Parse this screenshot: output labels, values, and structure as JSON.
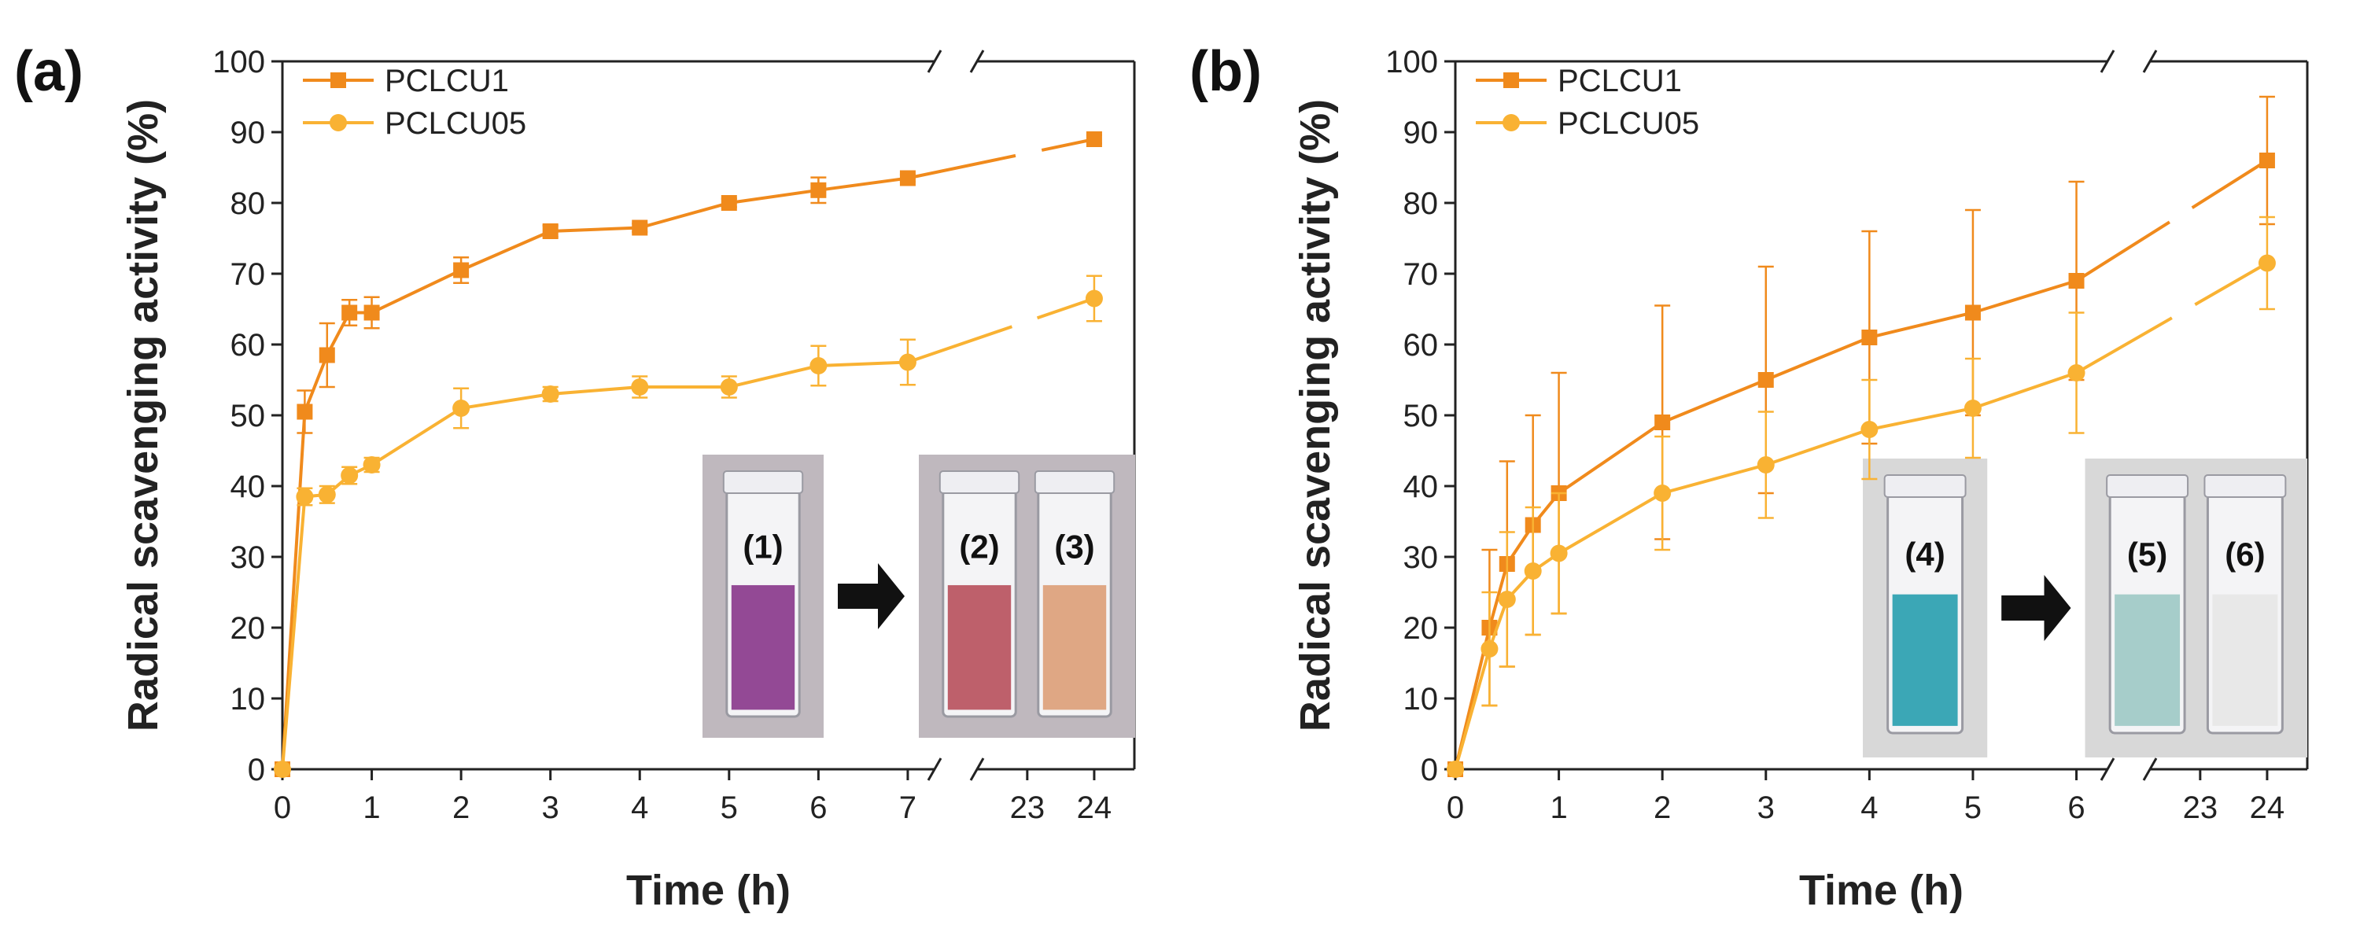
{
  "panels": [
    {
      "id": "a",
      "panel_label": "(a)",
      "vial_labels": [
        "(1)",
        "(2)",
        "(3)"
      ],
      "vial_colors": [
        "#8a3a8c",
        "#b9525e",
        "#dca07a"
      ],
      "inset_bg": "#bfb8be"
    },
    {
      "id": "b",
      "panel_label": "(b)",
      "vial_labels": [
        "(4)",
        "(5)",
        "(6)"
      ],
      "vial_colors": [
        "#2a9fb0",
        "#9ec9c6",
        "#e6e6e6"
      ],
      "inset_bg": "#d8d8d8"
    }
  ],
  "chart_data": [
    {
      "type": "line",
      "panel": "(a)",
      "xlabel": "Time (h)",
      "ylabel": "Radical scavenging activity (%)",
      "ylim": [
        0,
        100
      ],
      "yticks": [
        0,
        10,
        20,
        30,
        40,
        50,
        60,
        70,
        80,
        90,
        100
      ],
      "xticks": [
        "0",
        "1",
        "2",
        "3",
        "4",
        "5",
        "6",
        "7",
        "23",
        "24"
      ],
      "x_axis_break": [
        7,
        23
      ],
      "legend_position": "top-left",
      "series": [
        {
          "name": "PCLCU1",
          "marker": "square",
          "color": "#f08a1c",
          "x": [
            0,
            0.25,
            0.5,
            0.75,
            1,
            2,
            3,
            4,
            5,
            6,
            7,
            24
          ],
          "y": [
            0,
            50.5,
            58.5,
            64.5,
            64.5,
            70.5,
            76,
            76.5,
            80,
            81.8,
            83.5,
            89
          ],
          "err": [
            0,
            3,
            4.5,
            1.8,
            2.2,
            1.8,
            0.8,
            0.6,
            0.6,
            1.8,
            0.5,
            0.6
          ]
        },
        {
          "name": "PCLCU05",
          "marker": "circle",
          "color": "#f9b233",
          "x": [
            0,
            0.25,
            0.5,
            0.75,
            1,
            2,
            3,
            4,
            5,
            6,
            7,
            24
          ],
          "y": [
            0,
            38.5,
            38.8,
            41.5,
            43,
            51,
            53,
            54,
            54,
            57,
            57.5,
            66.5
          ],
          "err": [
            0,
            1.2,
            1.2,
            1.2,
            1,
            2.8,
            1,
            1.5,
            1.5,
            2.8,
            3.2,
            3.2
          ]
        }
      ]
    },
    {
      "type": "line",
      "panel": "(b)",
      "xlabel": "Time (h)",
      "ylabel": "Radical scavenging activity (%)",
      "ylim": [
        0,
        100
      ],
      "yticks": [
        0,
        10,
        20,
        30,
        40,
        50,
        60,
        70,
        80,
        90,
        100
      ],
      "xticks": [
        "0",
        "1",
        "2",
        "3",
        "4",
        "5",
        "6",
        "23",
        "24"
      ],
      "x_axis_break": [
        6,
        23
      ],
      "legend_position": "top-left",
      "series": [
        {
          "name": "PCLCU1",
          "marker": "square",
          "color": "#f08a1c",
          "x": [
            0,
            0.33,
            0.5,
            0.75,
            1,
            2,
            3,
            4,
            5,
            6,
            24
          ],
          "y": [
            0,
            20,
            29,
            34.5,
            39,
            49,
            55,
            61,
            64.5,
            69,
            86
          ],
          "err": [
            0,
            11,
            14.5,
            15.5,
            17,
            16.5,
            16,
            15,
            14.5,
            14,
            9
          ]
        },
        {
          "name": "PCLCU05",
          "marker": "circle",
          "color": "#f9b233",
          "x": [
            0,
            0.33,
            0.5,
            0.75,
            1,
            2,
            3,
            4,
            5,
            6,
            24
          ],
          "y": [
            0,
            17,
            24,
            28,
            30.5,
            39,
            43,
            48,
            51,
            56,
            71.5
          ],
          "err": [
            0,
            8,
            9.5,
            9,
            8.5,
            8,
            7.5,
            7,
            7,
            8.5,
            6.5
          ]
        }
      ]
    }
  ]
}
